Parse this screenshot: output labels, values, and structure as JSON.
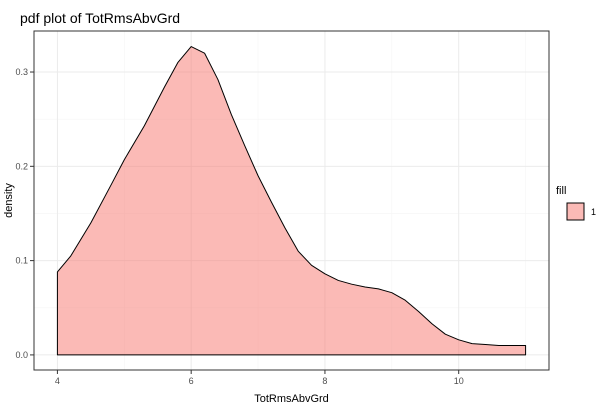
{
  "chart_data": {
    "type": "area",
    "title": "pdf plot of TotRmsAbvGrd",
    "xlabel": "TotRmsAbvGrd",
    "ylabel": "density",
    "xlim": [
      3.65,
      11.35
    ],
    "ylim": [
      -0.016,
      0.3435
    ],
    "x_ticks": [
      4,
      6,
      8,
      10
    ],
    "y_ticks": [
      0.0,
      0.1,
      0.2,
      0.3
    ],
    "x_tick_labels": [
      "4",
      "6",
      "8",
      "10"
    ],
    "y_tick_labels": [
      "0.0",
      "0.1",
      "0.2",
      "0.3"
    ],
    "grid": true,
    "fill_color": "#F8766D",
    "fill_opacity": 0.5,
    "legend": {
      "title": "fill",
      "position": "right",
      "entries": [
        "1"
      ]
    },
    "series": [
      {
        "name": "1",
        "x": [
          4.0,
          4.2,
          4.5,
          4.8,
          5.0,
          5.3,
          5.6,
          5.8,
          6.0,
          6.2,
          6.4,
          6.6,
          6.8,
          7.0,
          7.2,
          7.4,
          7.6,
          7.8,
          8.0,
          8.2,
          8.4,
          8.6,
          8.8,
          9.0,
          9.2,
          9.4,
          9.6,
          9.8,
          10.0,
          10.2,
          10.4,
          10.6,
          10.8,
          11.0
        ],
        "y": [
          0.088,
          0.105,
          0.14,
          0.18,
          0.207,
          0.243,
          0.284,
          0.31,
          0.327,
          0.32,
          0.292,
          0.255,
          0.222,
          0.19,
          0.162,
          0.135,
          0.11,
          0.095,
          0.086,
          0.079,
          0.075,
          0.072,
          0.07,
          0.066,
          0.058,
          0.046,
          0.033,
          0.022,
          0.016,
          0.012,
          0.011,
          0.01,
          0.01,
          0.01
        ]
      }
    ]
  }
}
